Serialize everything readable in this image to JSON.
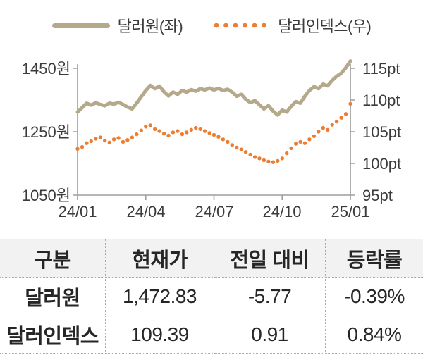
{
  "legend": {
    "krw_label": "달러원(좌)",
    "dxy_label": "달러인덱스(우)"
  },
  "chart": {
    "left_axis": {
      "ticks": [
        "1450원",
        "1250원",
        "1050원"
      ]
    },
    "right_axis": {
      "ticks": [
        "115pt",
        "110pt",
        "105pt",
        "100pt",
        "95pt"
      ]
    },
    "x_axis": {
      "ticks": [
        "24/01",
        "24/04",
        "24/07",
        "24/10",
        "25/01"
      ]
    }
  },
  "chart_data": {
    "type": "line",
    "title": "",
    "legend_position": "top",
    "grid": false,
    "x_ticks": [
      "24/01",
      "24/04",
      "24/07",
      "24/10",
      "25/01"
    ],
    "series": [
      {
        "name": "달러원(좌)",
        "axis": "left",
        "style": "solid-thick",
        "color": "#b5a88b",
        "ylim": [
          1050,
          1450
        ],
        "unit": "원",
        "values": [
          1312,
          1326,
          1340,
          1334,
          1341,
          1336,
          1332,
          1340,
          1337,
          1343,
          1336,
          1328,
          1322,
          1340,
          1360,
          1380,
          1396,
          1386,
          1394,
          1376,
          1363,
          1375,
          1368,
          1380,
          1375,
          1383,
          1378,
          1386,
          1382,
          1388,
          1382,
          1387,
          1380,
          1384,
          1375,
          1362,
          1368,
          1352,
          1342,
          1348,
          1335,
          1322,
          1332,
          1315,
          1303,
          1318,
          1312,
          1330,
          1345,
          1340,
          1362,
          1380,
          1392,
          1386,
          1400,
          1395,
          1412,
          1425,
          1435,
          1452,
          1473
        ]
      },
      {
        "name": "달러인덱스(우)",
        "axis": "right",
        "style": "dotted",
        "color": "#ed7d31",
        "ylim": [
          95,
          115
        ],
        "unit": "pt",
        "values": [
          102.3,
          102.6,
          103.2,
          103.5,
          103.9,
          104.1,
          103.6,
          103.3,
          103.8,
          104.0,
          103.4,
          103.7,
          104.1,
          104.6,
          105.2,
          105.8,
          106.0,
          105.4,
          105.1,
          104.7,
          104.4,
          104.9,
          105.1,
          104.6,
          104.9,
          105.3,
          105.6,
          105.4,
          105.1,
          104.8,
          104.5,
          104.2,
          103.8,
          103.4,
          102.9,
          102.5,
          102.2,
          101.8,
          101.4,
          101.0,
          100.8,
          100.5,
          100.3,
          100.2,
          100.4,
          100.8,
          101.6,
          102.4,
          103.1,
          103.4,
          103.2,
          103.8,
          104.3,
          105.0,
          105.6,
          105.3,
          106.1,
          106.6,
          107.2,
          107.8,
          109.4
        ]
      }
    ]
  },
  "table": {
    "headers": [
      "구분",
      "현재가",
      "전일 대비",
      "등락률"
    ],
    "rows": [
      [
        "달러원",
        "1,472.83",
        "-5.77",
        "-0.39%"
      ],
      [
        "달러인덱스",
        "109.39",
        "0.91",
        "0.84%"
      ]
    ]
  },
  "colors": {
    "krw_line": "#b5a88b",
    "dxy_dots": "#ed7d31",
    "axis": "#9d9d9d",
    "text": "#3b3b3b",
    "table_header_bg": "#f2f2f2",
    "table_border": "#ababab"
  }
}
